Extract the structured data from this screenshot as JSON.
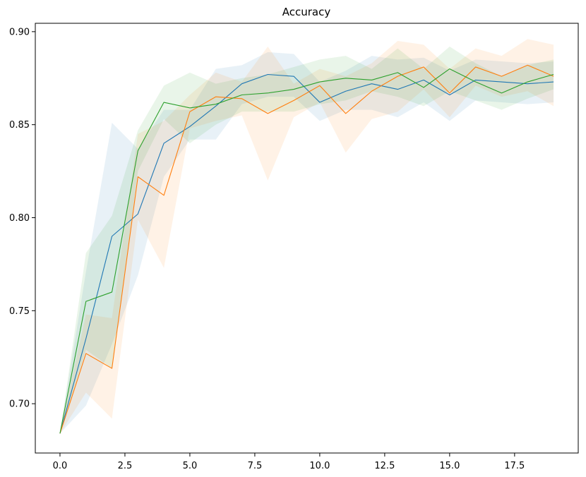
{
  "chart_data": {
    "type": "line",
    "title": "Accuracy",
    "xlabel": "",
    "ylabel": "",
    "xlim": [
      -0.95,
      19.95
    ],
    "ylim": [
      0.6735,
      0.9045
    ],
    "xticks": [
      0.0,
      2.5,
      5.0,
      7.5,
      10.0,
      12.5,
      15.0,
      17.5
    ],
    "xtick_labels": [
      "0.0",
      "2.5",
      "5.0",
      "7.5",
      "10.0",
      "12.5",
      "15.0",
      "17.5"
    ],
    "yticks": [
      0.7,
      0.75,
      0.8,
      0.85,
      0.9
    ],
    "ytick_labels": [
      "0.70",
      "0.75",
      "0.80",
      "0.85",
      "0.90"
    ],
    "grid": false,
    "legend": "none",
    "x": [
      0,
      1,
      2,
      3,
      4,
      5,
      6,
      7,
      8,
      9,
      10,
      11,
      12,
      13,
      14,
      15,
      16,
      17,
      18,
      19
    ],
    "series": [
      {
        "color": "#1f77b4",
        "values": [
          0.684,
          0.735,
          0.79,
          0.802,
          0.84,
          0.849,
          0.86,
          0.872,
          0.877,
          0.876,
          0.862,
          0.868,
          0.872,
          0.869,
          0.874,
          0.866,
          0.874,
          0.873,
          0.872,
          0.873
        ],
        "upper": [
          0.684,
          0.771,
          0.851,
          0.837,
          0.858,
          0.858,
          0.88,
          0.882,
          0.889,
          0.888,
          0.873,
          0.879,
          0.887,
          0.885,
          0.886,
          0.879,
          0.885,
          0.884,
          0.883,
          0.884
        ],
        "lower": [
          0.684,
          0.699,
          0.732,
          0.769,
          0.822,
          0.842,
          0.842,
          0.861,
          0.865,
          0.865,
          0.852,
          0.858,
          0.858,
          0.854,
          0.862,
          0.852,
          0.863,
          0.862,
          0.861,
          0.862
        ]
      },
      {
        "color": "#ff7f0e",
        "values": [
          0.684,
          0.727,
          0.719,
          0.822,
          0.812,
          0.857,
          0.865,
          0.864,
          0.856,
          0.863,
          0.871,
          0.856,
          0.868,
          0.876,
          0.881,
          0.867,
          0.881,
          0.876,
          0.882,
          0.876
        ],
        "upper": [
          0.684,
          0.748,
          0.746,
          0.845,
          0.852,
          0.866,
          0.878,
          0.873,
          0.892,
          0.872,
          0.88,
          0.876,
          0.883,
          0.895,
          0.893,
          0.88,
          0.891,
          0.887,
          0.896,
          0.893
        ],
        "lower": [
          0.684,
          0.706,
          0.692,
          0.799,
          0.773,
          0.848,
          0.852,
          0.855,
          0.82,
          0.854,
          0.862,
          0.835,
          0.853,
          0.857,
          0.869,
          0.854,
          0.871,
          0.865,
          0.868,
          0.86
        ]
      },
      {
        "color": "#2ca02c",
        "values": [
          0.684,
          0.755,
          0.76,
          0.836,
          0.862,
          0.859,
          0.861,
          0.866,
          0.867,
          0.869,
          0.873,
          0.875,
          0.874,
          0.878,
          0.87,
          0.88,
          0.873,
          0.867,
          0.873,
          0.877
        ],
        "upper": [
          0.684,
          0.781,
          0.801,
          0.847,
          0.871,
          0.878,
          0.872,
          0.875,
          0.877,
          0.881,
          0.885,
          0.887,
          0.88,
          0.891,
          0.88,
          0.892,
          0.883,
          0.876,
          0.882,
          0.885
        ],
        "lower": [
          0.684,
          0.729,
          0.719,
          0.825,
          0.853,
          0.84,
          0.85,
          0.857,
          0.857,
          0.857,
          0.861,
          0.863,
          0.868,
          0.865,
          0.86,
          0.868,
          0.863,
          0.858,
          0.864,
          0.869
        ]
      }
    ]
  }
}
